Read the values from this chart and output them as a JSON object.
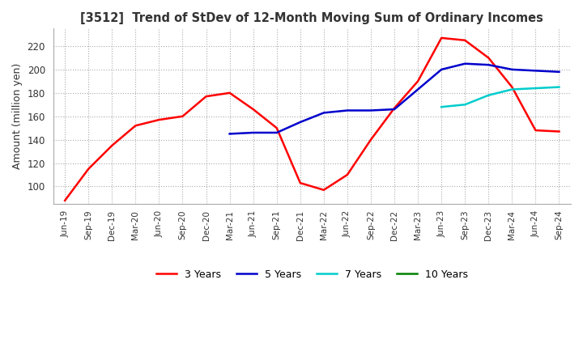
{
  "title": "[3512]  Trend of StDev of 12-Month Moving Sum of Ordinary Incomes",
  "ylabel": "Amount (million yen)",
  "ylim": [
    85,
    235
  ],
  "yticks": [
    100,
    120,
    140,
    160,
    180,
    200,
    220
  ],
  "colors": {
    "3yr": "#ff0000",
    "5yr": "#0000cc",
    "7yr": "#00cccc",
    "10yr": "#008000"
  },
  "legend": [
    "3 Years",
    "5 Years",
    "7 Years",
    "10 Years"
  ],
  "x_labels": [
    "Jun-19",
    "Sep-19",
    "Dec-19",
    "Mar-20",
    "Jun-20",
    "Sep-20",
    "Dec-20",
    "Mar-21",
    "Jun-21",
    "Sep-21",
    "Dec-21",
    "Mar-22",
    "Jun-22",
    "Sep-22",
    "Dec-22",
    "Mar-23",
    "Jun-23",
    "Sep-23",
    "Dec-23",
    "Mar-24",
    "Jun-24",
    "Sep-24"
  ],
  "data_3yr": [
    88,
    115,
    135,
    152,
    157,
    160,
    177,
    180,
    166,
    150,
    103,
    97,
    110,
    140,
    167,
    190,
    227,
    225,
    210,
    185,
    148,
    147
  ],
  "data_5yr": [
    null,
    null,
    null,
    null,
    null,
    null,
    null,
    145,
    146,
    146,
    155,
    163,
    165,
    165,
    166,
    183,
    200,
    205,
    204,
    200,
    199,
    198
  ],
  "data_7yr": [
    null,
    null,
    null,
    null,
    null,
    null,
    null,
    null,
    null,
    null,
    null,
    null,
    null,
    null,
    null,
    null,
    168,
    170,
    178,
    183,
    184,
    185
  ],
  "data_10yr": [
    null,
    null,
    null,
    null,
    null,
    null,
    null,
    null,
    null,
    null,
    null,
    null,
    null,
    null,
    null,
    null,
    null,
    null,
    null,
    null,
    null,
    null
  ]
}
